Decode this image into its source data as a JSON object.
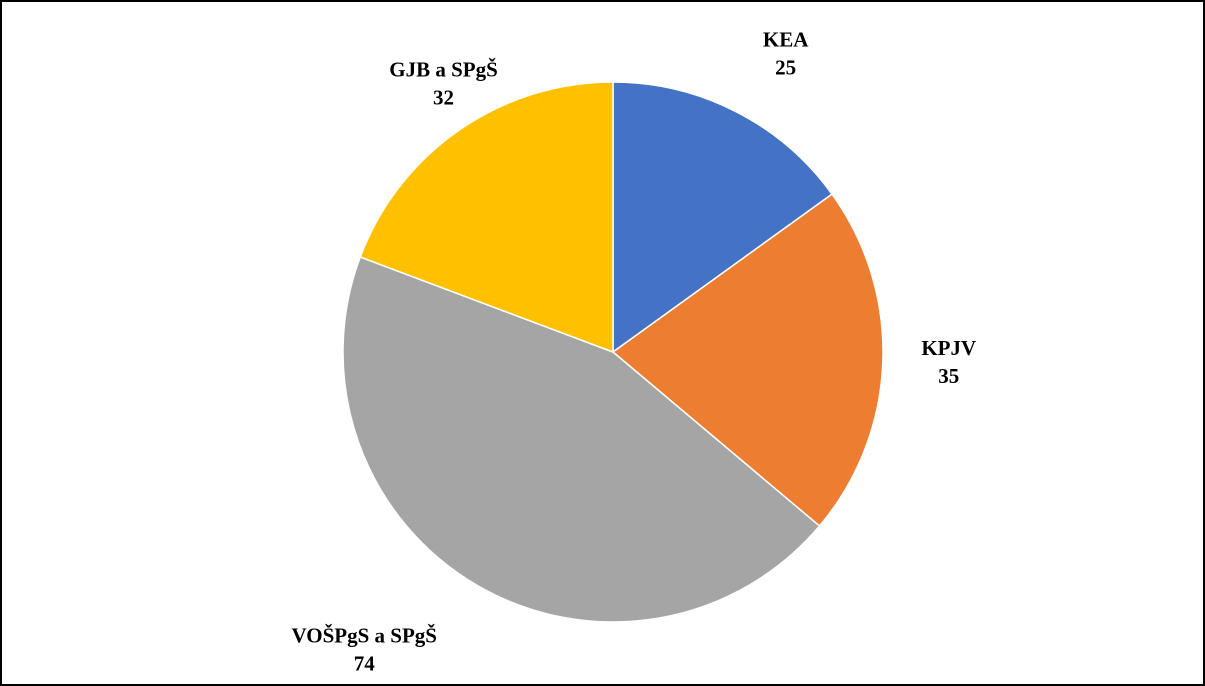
{
  "chart_data": {
    "type": "pie",
    "categories": [
      "KEA",
      "KPJV",
      "VOŠPgS a SPgŠ",
      "GJB a SPgŠ"
    ],
    "values": [
      25,
      35,
      74,
      32
    ],
    "colors": [
      "#4472c4",
      "#ed7d31",
      "#a5a5a5",
      "#ffc000"
    ]
  }
}
